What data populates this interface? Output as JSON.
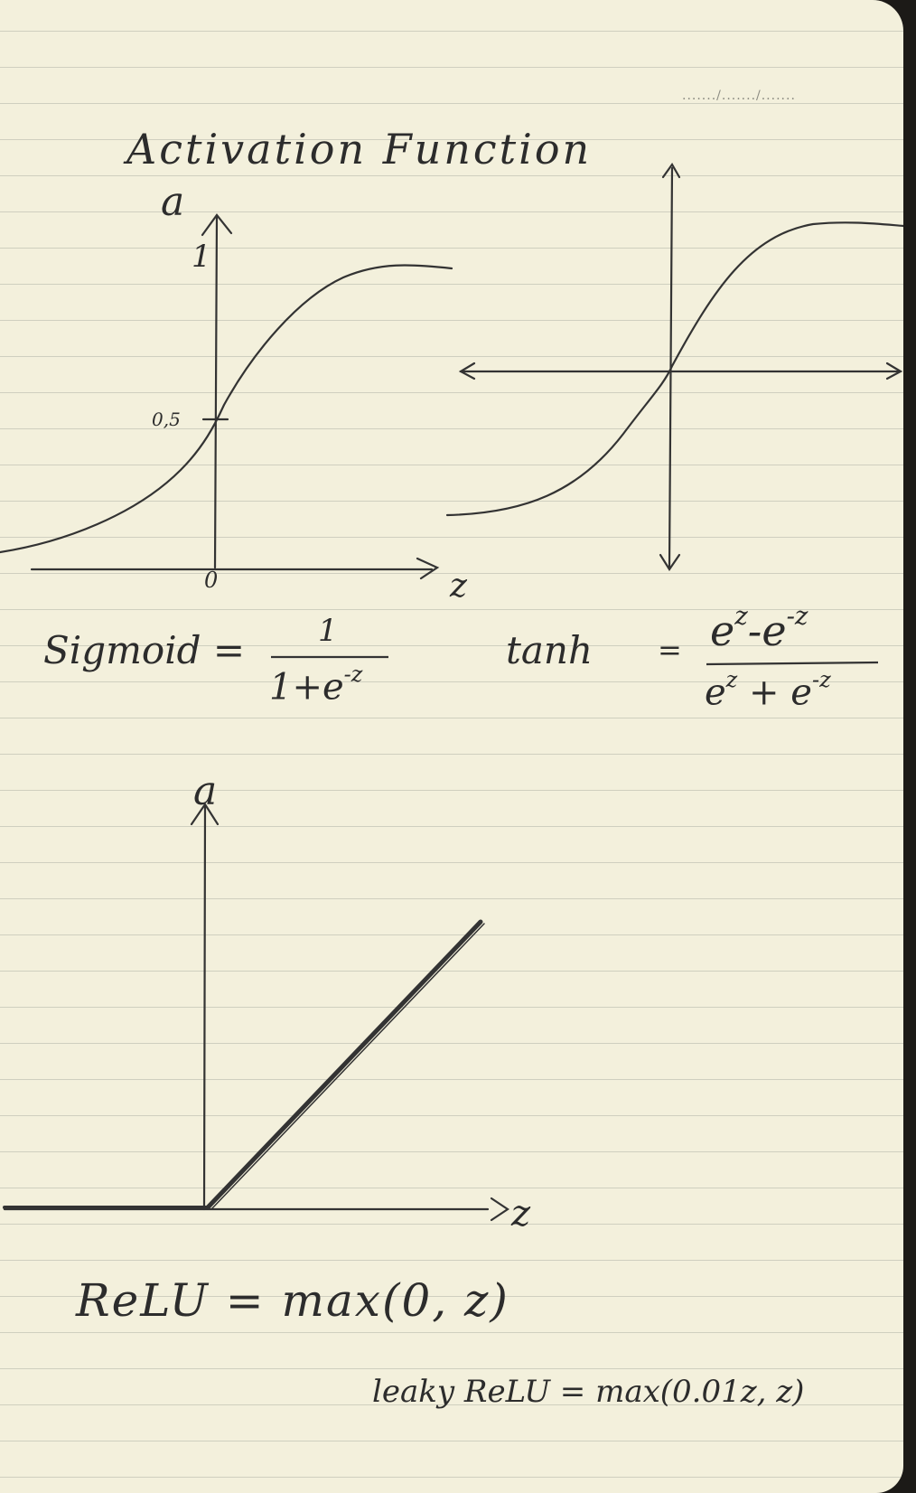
{
  "dateline": "......./......./.......",
  "title": "Activation Function",
  "sigmoid": {
    "y_axis": "a",
    "x_axis": "z",
    "tick_top": "1",
    "tick_mid": "0,5",
    "origin": "0",
    "formula_label": "Sigmoid =",
    "formula_num": "1",
    "formula_den_base": "1+e",
    "formula_den_exp": "-z"
  },
  "tanh": {
    "formula_label": "tanh",
    "equals": "=",
    "num_a": "e",
    "num_a_exp": "z",
    "num_op": "-",
    "num_b": "e",
    "num_b_exp": "-z",
    "den_a": "e",
    "den_a_exp": "z",
    "den_op": "+",
    "den_b": "e",
    "den_b_exp": "-z"
  },
  "relu": {
    "y_axis": "a",
    "x_axis": "z",
    "formula": "ReLU = max(0, z)",
    "leaky_formula": "leaky ReLU = max(0.01z, z)"
  }
}
